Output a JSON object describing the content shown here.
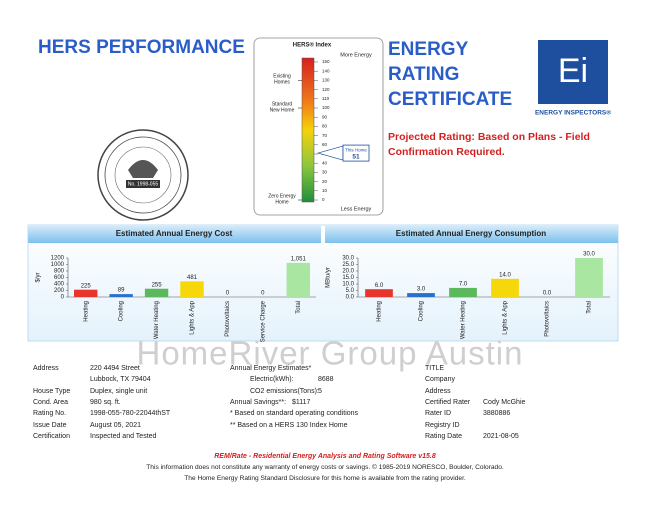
{
  "header": {
    "left_title": "HERS PERFORMANCE",
    "right_title": [
      "ENERGY",
      "RATING",
      "CERTIFICATE"
    ],
    "logo_mark": "Ei",
    "logo_name": "ENERGY INSPECTORS®",
    "notice": [
      "Projected Rating: Based on Plans - Field",
      "Confirmation Required."
    ],
    "seal_text": "No. 1998-055"
  },
  "hers_index": {
    "title": "HERS® Index",
    "top_label": "More Energy",
    "bottom_label": "Less Energy",
    "ylim": [
      0,
      150
    ],
    "ticks": [
      150,
      140,
      130,
      120,
      110,
      100,
      90,
      80,
      70,
      60,
      50,
      40,
      30,
      20,
      10,
      0
    ],
    "markers": [
      {
        "lines": [
          "Existing",
          "Homes"
        ],
        "value": 130
      },
      {
        "lines": [
          "Standard",
          "New Home"
        ],
        "value": 100
      },
      {
        "lines": [
          "Zero Energy",
          "Home"
        ],
        "value": 0
      }
    ],
    "this_home_label": "This Home",
    "this_home": 51
  },
  "chart_data": [
    {
      "type": "bar",
      "title": "Estimated Annual Energy Cost",
      "ylabel": "$/yr",
      "categories": [
        "Heating",
        "Cooling",
        "Water Heating",
        "Lights & App",
        "Photovoltaics",
        "Service Charge",
        "Total"
      ],
      "values": [
        225,
        89,
        255,
        481,
        0,
        0,
        1051
      ],
      "value_labels": [
        "225",
        "89",
        "255",
        "481",
        "0",
        "0",
        "1,051"
      ],
      "colors": [
        "#e8352b",
        "#2a6fcf",
        "#5cb85c",
        "#f5d70a",
        "#8c8c8c",
        "#a6a6a6",
        "#a9e6a1"
      ],
      "ylim": [
        0,
        1200
      ],
      "yticks": [
        0,
        200,
        400,
        600,
        800,
        1000,
        1200
      ],
      "grid": false
    },
    {
      "type": "bar",
      "title": "Estimated Annual Energy Consumption",
      "ylabel": "MBtu/yr",
      "categories": [
        "Heating",
        "Cooling",
        "Water Heating",
        "Lights & App",
        "Photovoltaics",
        "Total"
      ],
      "values": [
        6.0,
        3.0,
        7.0,
        14.0,
        0.0,
        30.0
      ],
      "value_labels": [
        "6.0",
        "3.0",
        "7.0",
        "14.0",
        "0.0",
        "30.0"
      ],
      "colors": [
        "#e8352b",
        "#2a6fcf",
        "#5cb85c",
        "#f5d70a",
        "#8c8c8c",
        "#a9e6a1"
      ],
      "ylim": [
        0,
        30
      ],
      "yticks": [
        {
          "value": 0,
          "label": "0.0"
        },
        {
          "value": 5,
          "label": "5.0"
        },
        {
          "value": 10,
          "label": "10.0"
        },
        {
          "value": 15,
          "label": "15.0"
        },
        {
          "value": 20,
          "label": "20.0"
        },
        {
          "value": 25,
          "label": "25.0"
        },
        {
          "value": 30,
          "label": "30.0"
        }
      ],
      "grid": false
    }
  ],
  "watermark": "HomeRiver Group Austin",
  "details": {
    "left": [
      {
        "label": "Address",
        "value": [
          "220 4494 Street",
          "Lubbock, TX 79404"
        ]
      },
      {
        "label": "House Type",
        "value": [
          "Duplex, single unit"
        ]
      },
      {
        "label": "Cond. Area",
        "value": [
          "980 sq. ft."
        ]
      },
      {
        "label": "Rating No.",
        "value": [
          "1998-055-780-22044thST"
        ]
      },
      {
        "label": "Issue Date",
        "value": [
          "August 05, 2021"
        ]
      },
      {
        "label": "Certification",
        "value": [
          "Inspected and Tested"
        ]
      }
    ],
    "middle": {
      "heading": "Annual Energy Estimates*",
      "electric_label": "Electric(kWh):",
      "electric": 8688,
      "co2_label": "CO2 emissions(Tons):",
      "co2": 5,
      "savings_label": "Annual Savings**:",
      "savings": "$1117",
      "note1": "* Based on standard operating conditions",
      "note2": "** Based on a HERS 130 Index Home"
    },
    "right": {
      "title": "TITLE",
      "company": "Company",
      "address": "Address",
      "rows": [
        {
          "label": "Certified Rater",
          "value": "Cody McGhie"
        },
        {
          "label": "Rater ID",
          "value": "3880886"
        },
        {
          "label": "Registry ID"
        },
        {
          "label": "Rating Date",
          "value": "2021-08-05"
        }
      ]
    }
  },
  "footer": {
    "software": "REM/Rate - Residential Energy Analysis and Rating Software v15.8",
    "disclaimer": "This information does not constitute any warranty of energy costs or savings. © 1985-2019 NORESCO, Boulder, Colorado.",
    "disclosure": "The Home Energy Rating Standard Disclosure for this home is available from the rating provider."
  }
}
